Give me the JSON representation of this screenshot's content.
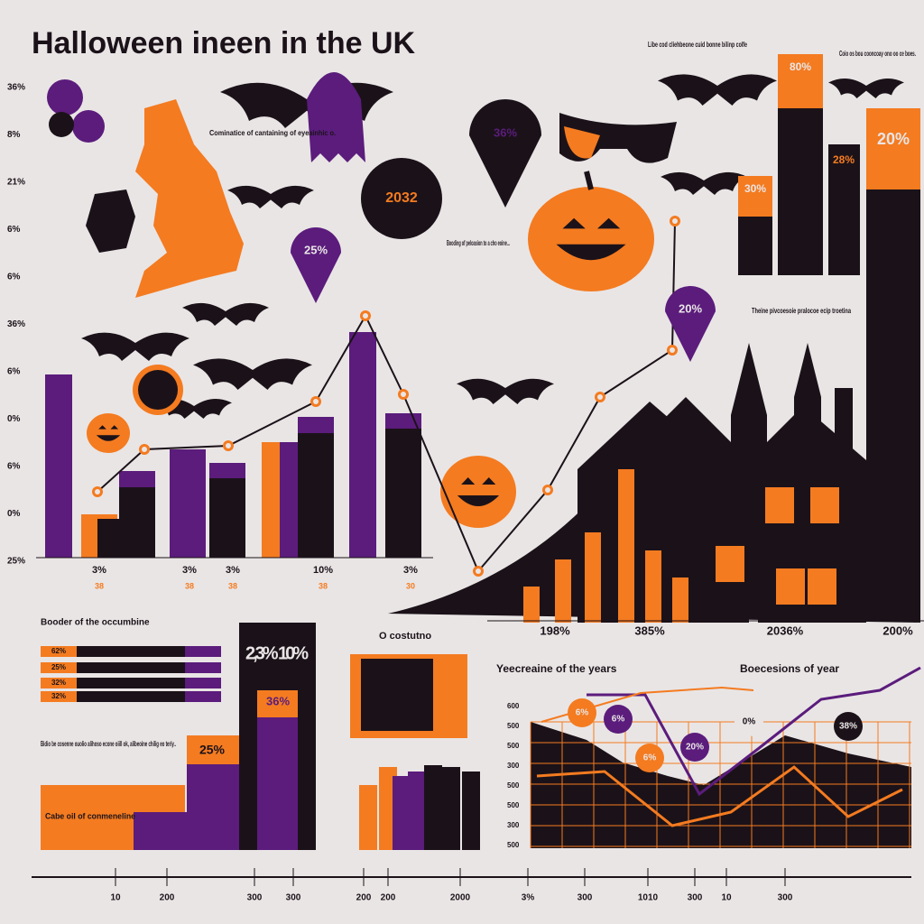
{
  "title": "Halloween ineen in the UK",
  "notes": [
    "Cominatice of cantaining of eyeainhic o.",
    "Booding of peloasion to a cho eoine...",
    "Libe cod cliehbeone cuid bonne bilinp colfe",
    "Coio os bou cooncoay ono oo ce boes.",
    "Theine pivcoesoie pralocoe ecip troetina"
  ],
  "pins": [
    "36%",
    "25%",
    "2032",
    "20%"
  ],
  "top_bars": [
    "30%",
    "80%",
    "28%",
    "20%"
  ],
  "left_axis": [
    "36%",
    "8%",
    "21%",
    "6%",
    "6%",
    "36%",
    "6%",
    "0%",
    "6%",
    "0%",
    "25%"
  ],
  "left_x_labels": [
    "3%",
    "3%",
    "3%",
    "10%",
    "3%"
  ],
  "left_x_sublabels": [
    "38",
    "38",
    "38",
    "38",
    "30"
  ],
  "mid_labels": [
    "198%",
    "385%",
    "2036%",
    "200%"
  ],
  "bottom_left": {
    "heading": "Booder of the occumbine",
    "bar_tags": [
      "62%",
      "25%",
      "32%",
      "32%"
    ],
    "callout": "2,3% 10%",
    "labels": [
      "36%",
      "25%"
    ],
    "note": "Bidio be cosenne ouolio alihoso econe oiill ok, alibeoine chilig eo teriy..",
    "block": "Cabe oil of conmeneline"
  },
  "bottom_mid": {
    "heading": "O costutno"
  },
  "bottom_right": {
    "headings": [
      "Yeecreaine of the years",
      "Boecesions of year"
    ],
    "y_labels": [
      "600",
      "500",
      "500",
      "300",
      "500",
      "500",
      "300",
      "500"
    ],
    "bubbles": [
      "6%",
      "6%",
      "6%",
      "20%",
      "0%",
      "38%"
    ]
  },
  "x_axis": [
    "10",
    "200",
    "300",
    "300",
    "200",
    "200",
    "2000",
    "3%",
    "300",
    "1010",
    "300",
    "10",
    "300"
  ]
}
